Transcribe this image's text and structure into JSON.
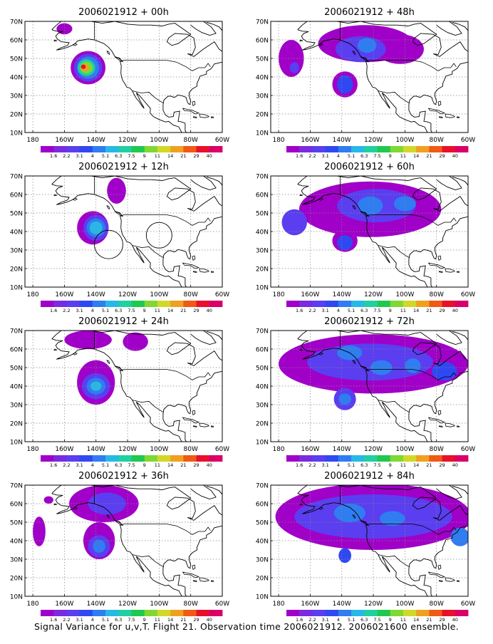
{
  "figure": {
    "caption": "Signal Variance for u,v,T. Flight 21. Observation time 2006021912. 2006021600 ensemble."
  },
  "scale": {
    "levels": [
      "1.6",
      "2.2",
      "3.1",
      "4",
      "5.1",
      "6.3",
      "7.5",
      "9",
      "11",
      "14",
      "21",
      "29",
      "40"
    ],
    "colors": [
      "#a000c8",
      "#7a2be0",
      "#5a3ef0",
      "#3048f2",
      "#2f7df0",
      "#28b8e8",
      "#20d0a0",
      "#20c850",
      "#7fd834",
      "#d2d828",
      "#f0a020",
      "#f05a14",
      "#e8102a",
      "#d80068"
    ]
  },
  "axes": {
    "lat_labels": [
      "70N",
      "60N",
      "50N",
      "40N",
      "30N",
      "20N",
      "10N"
    ],
    "lon_labels": [
      "180",
      "160W",
      "140W",
      "120W",
      "100W",
      "80W",
      "60W"
    ]
  },
  "panels": [
    {
      "title": "2006021912 + 00h",
      "blobs": [
        {
          "lon": -145,
          "lat": 45,
          "rx": 11,
          "ry": 9,
          "level": 0
        },
        {
          "lon": -145,
          "lat": 45,
          "rx": 9,
          "ry": 7.5,
          "level": 2
        },
        {
          "lon": -145,
          "lat": 45,
          "rx": 7,
          "ry": 6,
          "level": 4
        },
        {
          "lon": -146,
          "lat": 45,
          "rx": 5.5,
          "ry": 4.5,
          "level": 6
        },
        {
          "lon": -146,
          "lat": 45,
          "rx": 4,
          "ry": 3.2,
          "level": 8
        },
        {
          "lon": -147,
          "lat": 45,
          "rx": 2.5,
          "ry": 2,
          "level": 10
        },
        {
          "lon": -148,
          "lat": 45.5,
          "rx": 1.5,
          "ry": 1.2,
          "level": 12
        },
        {
          "lon": -160,
          "lat": 66,
          "rx": 5,
          "ry": 3,
          "level": 0
        }
      ]
    },
    {
      "title": "2006021912 + 48h",
      "blobs": [
        {
          "lon": -125,
          "lat": 58,
          "rx": 30,
          "ry": 10,
          "level": 0
        },
        {
          "lon": -172,
          "lat": 50,
          "rx": 8,
          "ry": 10,
          "level": 0
        },
        {
          "lon": -138,
          "lat": 36,
          "rx": 8,
          "ry": 7,
          "level": 0
        },
        {
          "lon": -103,
          "lat": 55,
          "rx": 15,
          "ry": 8,
          "level": 0
        },
        {
          "lon": -128,
          "lat": 55,
          "rx": 16,
          "ry": 7,
          "level": 2
        },
        {
          "lon": -138,
          "lat": 36,
          "rx": 5,
          "ry": 5,
          "level": 3
        },
        {
          "lon": -124,
          "lat": 57,
          "rx": 6,
          "ry": 4,
          "level": 4
        },
        {
          "lon": -170,
          "lat": 45,
          "rx": 3,
          "ry": 3,
          "level": 2
        }
      ]
    },
    {
      "title": "2006021912 + 12h",
      "blobs": [
        {
          "lon": -142,
          "lat": 42,
          "rx": 10,
          "ry": 9,
          "level": 0
        },
        {
          "lon": -140,
          "lat": 42,
          "rx": 8,
          "ry": 7,
          "level": 2
        },
        {
          "lon": -140,
          "lat": 42,
          "rx": 6,
          "ry": 5,
          "level": 4
        },
        {
          "lon": -140,
          "lat": 42,
          "rx": 4,
          "ry": 3.5,
          "level": 5
        },
        {
          "lon": -127,
          "lat": 62,
          "rx": 6,
          "ry": 7,
          "level": 0
        }
      ]
    },
    {
      "title": "2006021912 + 60h",
      "blobs": [
        {
          "lon": -122,
          "lat": 52,
          "rx": 45,
          "ry": 15,
          "level": 0
        },
        {
          "lon": -170,
          "lat": 45,
          "rx": 8,
          "ry": 7,
          "level": 2
        },
        {
          "lon": -138,
          "lat": 35,
          "rx": 8,
          "ry": 6,
          "level": 0
        },
        {
          "lon": -118,
          "lat": 54,
          "rx": 25,
          "ry": 9,
          "level": 2
        },
        {
          "lon": -138,
          "lat": 34,
          "rx": 5,
          "ry": 4,
          "level": 3
        },
        {
          "lon": -122,
          "lat": 54,
          "rx": 8,
          "ry": 5,
          "level": 4
        },
        {
          "lon": -100,
          "lat": 55,
          "rx": 7,
          "ry": 4,
          "level": 4
        }
      ]
    },
    {
      "title": "2006021912 + 24h",
      "blobs": [
        {
          "lon": -140,
          "lat": 42,
          "rx": 12,
          "ry": 12,
          "level": 0
        },
        {
          "lon": -145,
          "lat": 65,
          "rx": 15,
          "ry": 5,
          "level": 0
        },
        {
          "lon": -115,
          "lat": 64,
          "rx": 8,
          "ry": 5,
          "level": 0
        },
        {
          "lon": -140,
          "lat": 40,
          "rx": 9,
          "ry": 7,
          "level": 2
        },
        {
          "lon": -140,
          "lat": 40,
          "rx": 6,
          "ry": 4.5,
          "level": 4
        },
        {
          "lon": -140,
          "lat": 40,
          "rx": 3.5,
          "ry": 2.5,
          "level": 5
        }
      ]
    },
    {
      "title": "2006021912 + 72h",
      "blobs": [
        {
          "lon": -120,
          "lat": 52,
          "rx": 60,
          "ry": 16,
          "level": 0
        },
        {
          "lon": -122,
          "lat": 53,
          "rx": 40,
          "ry": 10,
          "level": 2
        },
        {
          "lon": -138,
          "lat": 33,
          "rx": 7,
          "ry": 6,
          "level": 2
        },
        {
          "lon": -138,
          "lat": 33,
          "rx": 4,
          "ry": 3,
          "level": 4
        },
        {
          "lon": -135,
          "lat": 58,
          "rx": 8,
          "ry": 4,
          "level": 4
        },
        {
          "lon": -115,
          "lat": 50,
          "rx": 7,
          "ry": 4,
          "level": 4
        },
        {
          "lon": -95,
          "lat": 51,
          "rx": 5,
          "ry": 4,
          "level": 4
        },
        {
          "lon": -75,
          "lat": 48,
          "rx": 8,
          "ry": 5,
          "level": 3
        }
      ]
    },
    {
      "title": "2006021912 + 36h",
      "blobs": [
        {
          "lon": -135,
          "lat": 60,
          "rx": 22,
          "ry": 10,
          "level": 0
        },
        {
          "lon": -138,
          "lat": 40,
          "rx": 10,
          "ry": 10,
          "level": 0
        },
        {
          "lon": -170,
          "lat": 62,
          "rx": 3,
          "ry": 2,
          "level": 0
        },
        {
          "lon": -176,
          "lat": 45,
          "rx": 4,
          "ry": 8,
          "level": 0
        },
        {
          "lon": -133,
          "lat": 60,
          "rx": 12,
          "ry": 6,
          "level": 2
        },
        {
          "lon": -138,
          "lat": 37,
          "rx": 7,
          "ry": 6,
          "level": 2
        },
        {
          "lon": -138,
          "lat": 37,
          "rx": 4,
          "ry": 3.5,
          "level": 4
        }
      ]
    },
    {
      "title": "2006021912 + 84h",
      "blobs": [
        {
          "lon": -120,
          "lat": 53,
          "rx": 62,
          "ry": 18,
          "level": 0
        },
        {
          "lon": -120,
          "lat": 53,
          "rx": 50,
          "ry": 12,
          "level": 2
        },
        {
          "lon": -138,
          "lat": 32,
          "rx": 4,
          "ry": 4,
          "level": 3
        },
        {
          "lon": -135,
          "lat": 55,
          "rx": 10,
          "ry": 5,
          "level": 4
        },
        {
          "lon": -108,
          "lat": 52,
          "rx": 8,
          "ry": 4,
          "level": 4
        },
        {
          "lon": -65,
          "lat": 42,
          "rx": 6,
          "ry": 5,
          "level": 4
        }
      ]
    }
  ]
}
